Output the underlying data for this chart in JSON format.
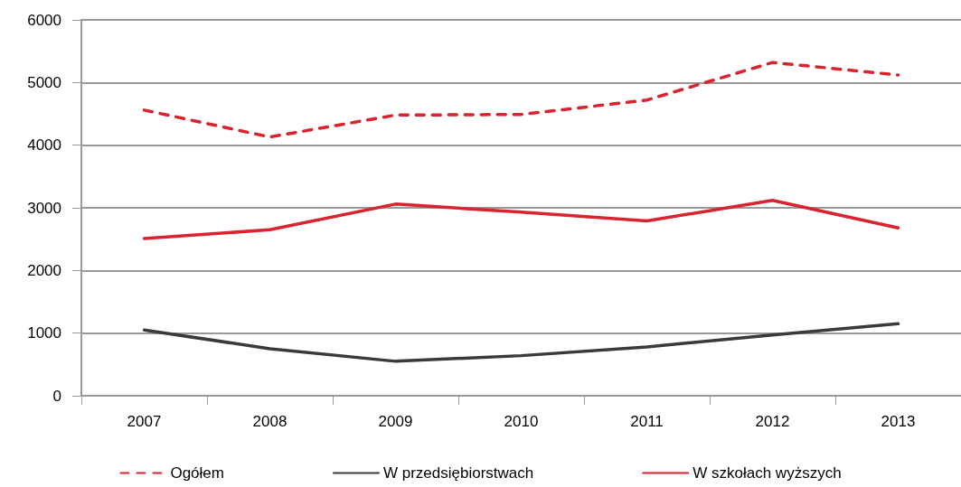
{
  "chart_data": {
    "type": "line",
    "categories": [
      "2007",
      "2008",
      "2009",
      "2010",
      "2011",
      "2012",
      "2013"
    ],
    "series": [
      {
        "name": "Ogółem",
        "color": "#d9232e",
        "line_style": "dashed",
        "values": [
          4560,
          4130,
          4480,
          4490,
          4720,
          5320,
          5120
        ]
      },
      {
        "name": "W przedsiębiorstwach",
        "color": "#3a3a3a",
        "line_style": "solid",
        "values": [
          1050,
          750,
          550,
          640,
          780,
          970,
          1150
        ]
      },
      {
        "name": "W szkołach wyższych",
        "color": "#d9232e",
        "line_style": "solid",
        "values": [
          2510,
          2650,
          3060,
          2930,
          2790,
          3120,
          2680
        ]
      }
    ],
    "ylim": [
      0,
      6000
    ],
    "yticks": [
      0,
      1000,
      2000,
      3000,
      4000,
      5000,
      6000
    ],
    "grid": "y",
    "legend": "bottom",
    "marker": "none"
  }
}
